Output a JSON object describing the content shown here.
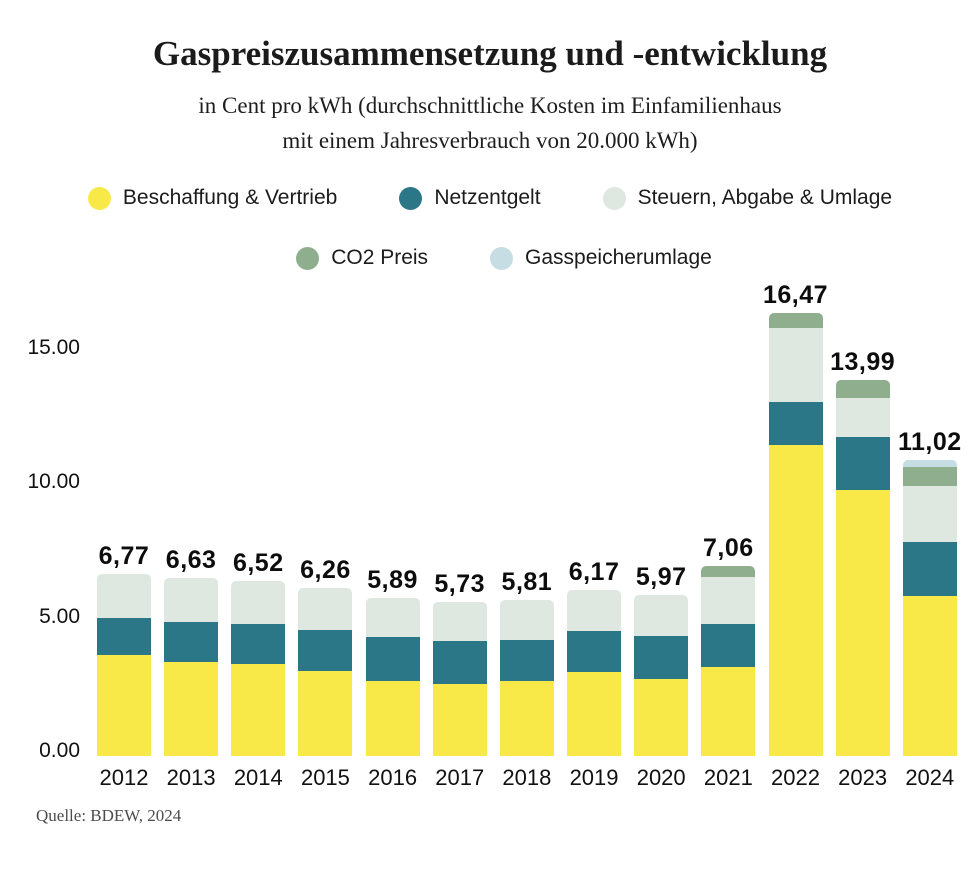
{
  "title": "Gaspreiszusammensetzung und -entwicklung",
  "subtitle": {
    "line1": "in Cent pro kWh (durchschnittliche Kosten im Einfamilienhaus",
    "line2": "mit einem Jahresverbrauch von 20.000 kWh)"
  },
  "source": "Quelle: BDEW, 2024",
  "legend": {
    "row1": [
      {
        "label": "Beschaffung & Vertrieb",
        "color": "#f8e948"
      },
      {
        "label": "Netzentgelt",
        "color": "#2b7787"
      },
      {
        "label": "Steuern, Abgabe & Umlage",
        "color": "#dee7e0"
      }
    ],
    "row2": [
      {
        "label": "CO2 Preis",
        "color": "#8fae8e"
      },
      {
        "label": "Gasspeicherumlage",
        "color": "#c5dde3"
      }
    ]
  },
  "chart_data": {
    "type": "bar",
    "stacked": true,
    "unit": "Cent pro kWh",
    "title": "Gaspreiszusammensetzung und -entwicklung",
    "xlabel": "",
    "ylabel": "Cent pro kWh",
    "grid": false,
    "legend_position": "top",
    "ylim": [
      0,
      17.5
    ],
    "categories": [
      "2012",
      "2013",
      "2014",
      "2015",
      "2016",
      "2017",
      "2018",
      "2019",
      "2020",
      "2021",
      "2022",
      "2023",
      "2024"
    ],
    "series": [
      {
        "name": "Beschaffung & Vertrieb",
        "color": "#f8e948",
        "values": [
          3.75,
          3.49,
          3.42,
          3.16,
          2.79,
          2.68,
          2.8,
          3.11,
          2.86,
          3.3,
          11.57,
          9.9,
          5.96
        ]
      },
      {
        "name": "Netzentgelt",
        "color": "#2b7787",
        "values": [
          1.38,
          1.49,
          1.49,
          1.52,
          1.63,
          1.61,
          1.52,
          1.55,
          1.61,
          1.61,
          1.58,
          1.95,
          1.98
        ]
      },
      {
        "name": "Steuern, Abgabe & Umlage",
        "color": "#dee7e0",
        "values": [
          1.64,
          1.65,
          1.61,
          1.58,
          1.47,
          1.44,
          1.49,
          1.51,
          1.5,
          1.76,
          2.77,
          1.45,
          2.11
        ]
      },
      {
        "name": "CO2 Preis",
        "color": "#8fae8e",
        "values": [
          0,
          0,
          0,
          0,
          0,
          0,
          0,
          0,
          0,
          0.39,
          0.55,
          0.69,
          0.71
        ]
      },
      {
        "name": "Gasspeicherumlage",
        "color": "#c5dde3",
        "values": [
          0,
          0,
          0,
          0,
          0,
          0,
          0,
          0,
          0,
          0,
          0,
          0,
          0.26
        ]
      }
    ],
    "totals": [
      6.77,
      6.63,
      6.52,
      6.26,
      5.89,
      5.73,
      5.81,
      6.17,
      5.97,
      7.06,
      16.47,
      13.99,
      11.02
    ],
    "total_labels": [
      "6,77",
      "6,63",
      "6,52",
      "6,26",
      "5,89",
      "5,73",
      "5,81",
      "6,17",
      "5,97",
      "7,06",
      "16,47",
      "13,99",
      "11,02"
    ],
    "y_ticks": [
      {
        "value": 15,
        "label": "15.00"
      },
      {
        "value": 10,
        "label": "10.00"
      },
      {
        "value": 5,
        "label": "5.00"
      },
      {
        "value": 0,
        "label": "0.00"
      }
    ]
  }
}
